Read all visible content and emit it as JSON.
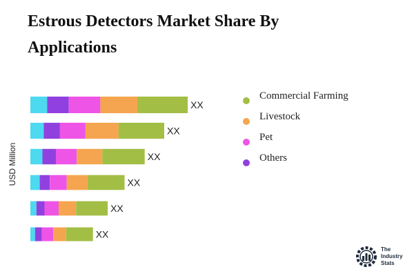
{
  "title": "Estrous Detectors Market Share By Applications",
  "chart_data": {
    "type": "bar",
    "orientation": "horizontal",
    "stacked": true,
    "ylabel": "USD Million",
    "categories": [
      "",
      "",
      "",
      "",
      "",
      ""
    ],
    "data_labels": [
      "XX",
      "XX",
      "XX",
      "XX",
      "XX",
      "XX"
    ],
    "series": [
      {
        "name": "",
        "color": "#4DD9F0",
        "values": [
          25,
          20,
          18,
          14,
          9,
          7
        ]
      },
      {
        "name": "Others",
        "color": "#9140E0",
        "values": [
          32,
          24,
          20,
          15,
          12,
          10
        ]
      },
      {
        "name": "Pet",
        "color": "#EE55E6",
        "values": [
          47,
          38,
          31,
          25,
          21,
          17
        ]
      },
      {
        "name": "Livestock",
        "color": "#F5A54F",
        "values": [
          55,
          49,
          38,
          31,
          26,
          19
        ]
      },
      {
        "name": "Commercial Farming",
        "color": "#A3BE45",
        "values": [
          75,
          68,
          63,
          55,
          47,
          40
        ]
      }
    ],
    "xlim": [
      0,
      240
    ],
    "grid": false,
    "legend_position": "right"
  },
  "legend": [
    {
      "label": "Commercial Farming",
      "color": "#A3BE45"
    },
    {
      "label": "Livestock",
      "color": "#F5A54F"
    },
    {
      "label": "Pet",
      "color": "#EE55E6"
    },
    {
      "label": "Others",
      "color": "#9140E0"
    }
  ],
  "logo": {
    "line1": "The",
    "line2": "Industry",
    "line3": "Stats"
  }
}
